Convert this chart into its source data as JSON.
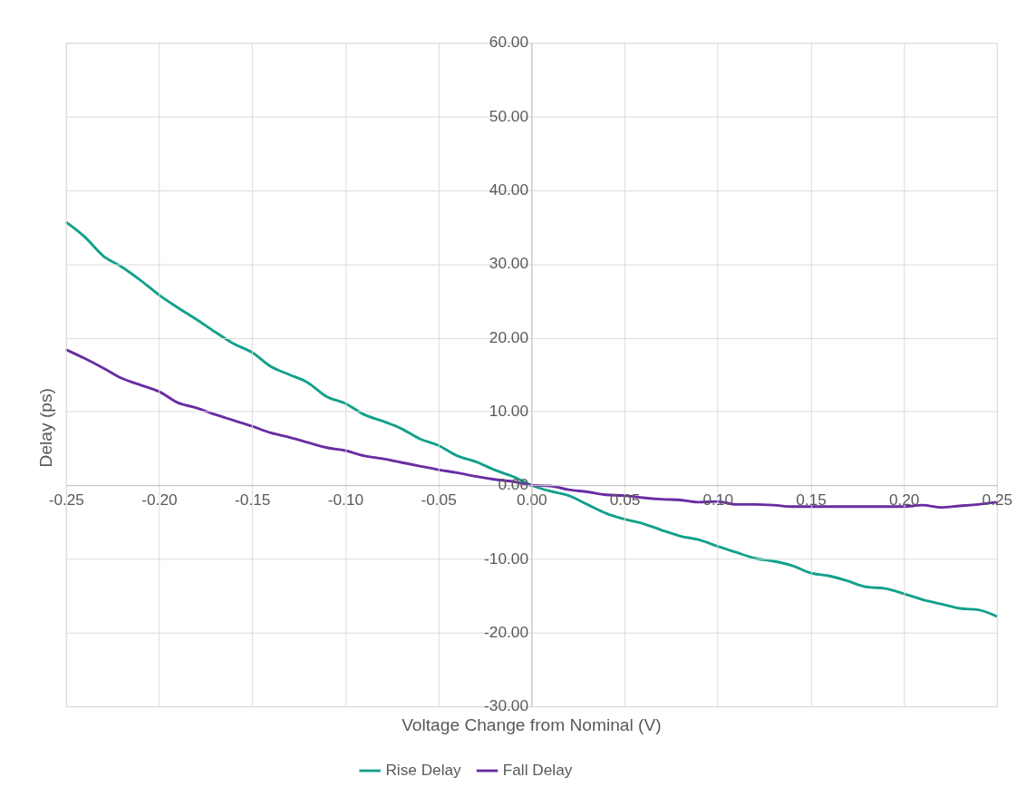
{
  "chart_data": {
    "type": "line",
    "xlabel": "Voltage Change from Nominal (V)",
    "ylabel": "Delay (ps)",
    "x": [
      -0.25,
      -0.24,
      -0.23,
      -0.22,
      -0.21,
      -0.2,
      -0.19,
      -0.18,
      -0.17,
      -0.16,
      -0.15,
      -0.14,
      -0.13,
      -0.12,
      -0.11,
      -0.1,
      -0.09,
      -0.08,
      -0.07,
      -0.06,
      -0.05,
      -0.04,
      -0.03,
      -0.02,
      -0.01,
      0,
      0.01,
      0.02,
      0.03,
      0.04,
      0.05,
      0.06,
      0.07,
      0.08,
      0.09,
      0.1,
      0.11,
      0.12,
      0.13,
      0.14,
      0.15,
      0.16,
      0.17,
      0.18,
      0.19,
      0.2,
      0.21,
      0.22,
      0.23,
      0.24,
      0.25
    ],
    "series": [
      {
        "name": "Rise Delay",
        "color": "#12a08a",
        "values": [
          35.7,
          33.7,
          31.1,
          29.6,
          27.8,
          25.8,
          24.1,
          22.5,
          20.8,
          19.2,
          18.0,
          16.1,
          15.0,
          13.9,
          12.0,
          11.1,
          9.6,
          8.7,
          7.7,
          6.3,
          5.4,
          4.0,
          3.2,
          2.1,
          1.2,
          0,
          -0.8,
          -1.4,
          -2.6,
          -3.8,
          -4.6,
          -5.2,
          -6.1,
          -6.9,
          -7.4,
          -8.3,
          -9.1,
          -9.9,
          -10.3,
          -10.9,
          -11.9,
          -12.3,
          -13.0,
          -13.8,
          -14.0,
          -14.7,
          -15.5,
          -16.1,
          -16.7,
          -16.9,
          -17.8
        ]
      },
      {
        "name": "Fall Delay",
        "color": "#6a2ca3",
        "values": [
          18.4,
          17.2,
          15.9,
          14.5,
          13.6,
          12.7,
          11.2,
          10.5,
          9.6,
          8.8,
          8.0,
          7.1,
          6.5,
          5.8,
          5.1,
          4.7,
          4.0,
          3.6,
          3.1,
          2.6,
          2.1,
          1.7,
          1.2,
          0.8,
          0.5,
          0,
          -0.1,
          -0.6,
          -0.9,
          -1.3,
          -1.4,
          -1.7,
          -1.9,
          -2.0,
          -2.3,
          -2.2,
          -2.6,
          -2.6,
          -2.7,
          -2.9,
          -2.9,
          -2.9,
          -2.9,
          -2.9,
          -2.9,
          -2.9,
          -2.7,
          -3.0,
          -2.8,
          -2.6,
          -2.3
        ]
      }
    ],
    "xlim": [
      -0.25,
      0.25
    ],
    "xticks": [
      {
        "value": -0.25,
        "label": "-0.25"
      },
      {
        "value": -0.2,
        "label": "-0.20"
      },
      {
        "value": -0.15,
        "label": "-0.15"
      },
      {
        "value": -0.1,
        "label": "-0.10"
      },
      {
        "value": -0.05,
        "label": "-0.05"
      },
      {
        "value": 0,
        "label": "0.00"
      },
      {
        "value": 0.05,
        "label": "0.05"
      },
      {
        "value": 0.1,
        "label": "0.10"
      },
      {
        "value": 0.15,
        "label": "0.15"
      },
      {
        "value": 0.2,
        "label": "0.20"
      },
      {
        "value": 0.25,
        "label": "0.25"
      }
    ],
    "ylim": [
      -30,
      60
    ],
    "yticks": [
      {
        "value": -30,
        "label": "-30.00"
      },
      {
        "value": -20,
        "label": "-20.00"
      },
      {
        "value": -10,
        "label": "-10.00"
      },
      {
        "value": 0,
        "label": "0.00"
      },
      {
        "value": 10,
        "label": "10.00"
      },
      {
        "value": 20,
        "label": "20.00"
      },
      {
        "value": 30,
        "label": "30.00"
      },
      {
        "value": 40,
        "label": "40.00"
      },
      {
        "value": 50,
        "label": "50.00"
      },
      {
        "value": 60,
        "label": "60.00"
      }
    ],
    "grid": true,
    "legend": "bottom",
    "marker": "none",
    "line_style": "solid"
  }
}
